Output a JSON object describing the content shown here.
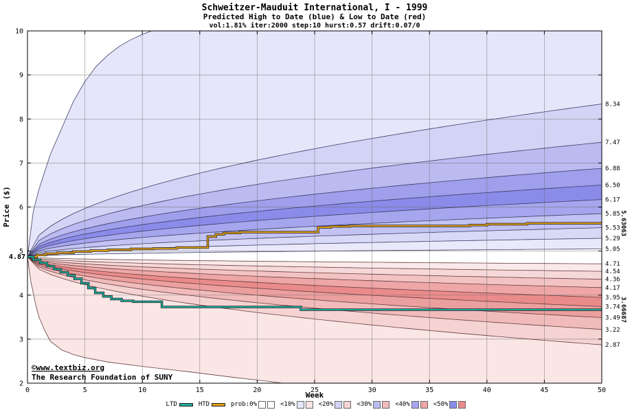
{
  "chart_data": {
    "type": "area",
    "title": "Schweitzer-Mauduit International, I - 1999",
    "subtitle": "Predicted High to Date (blue) &  Low to Date (red)",
    "params": "vol:1.81% iter:2000 step:10 hurst:0.57 drift:0.07/0",
    "xlabel": "Week",
    "ylabel": "Price ($)",
    "xlim": [
      0,
      50
    ],
    "ylim": [
      2,
      10
    ],
    "xticks": [
      0,
      5,
      10,
      15,
      20,
      25,
      30,
      35,
      40,
      45,
      50
    ],
    "yticks": [
      2,
      3,
      4,
      5,
      6,
      7,
      8,
      9,
      10
    ],
    "grid": true,
    "legend_position": "bottom",
    "start_price": 4.87,
    "start_label": "4.87",
    "fan": {
      "model": "sqrt-spread probability cone from start price",
      "upper": {
        "boundary_ends": [
          5.05,
          5.29,
          5.53,
          5.85,
          6.17,
          6.5,
          6.88,
          7.47,
          8.34
        ],
        "labels": [
          "5.05",
          "5.29",
          "5.53",
          "5.85",
          "6.17",
          "6.50",
          "6.88",
          "7.47",
          "8.34"
        ],
        "extreme_points": [
          [
            0,
            4.87
          ],
          [
            0.5,
            5.9
          ],
          [
            1,
            6.4
          ],
          [
            2,
            7.2
          ],
          [
            3,
            7.8
          ],
          [
            4,
            8.4
          ],
          [
            5,
            8.85
          ],
          [
            6,
            9.2
          ],
          [
            7,
            9.45
          ],
          [
            8,
            9.65
          ],
          [
            9,
            9.8
          ],
          [
            10,
            9.92
          ],
          [
            11,
            10.02
          ],
          [
            13,
            10.3
          ],
          [
            50,
            13.5
          ]
        ],
        "band_colors": [
          "#e9e9fb",
          "#d8d8f7",
          "#c2c2f3",
          "#a6a6ee",
          "#8b8bea",
          "#9f9fec",
          "#bbbbf1",
          "#d3d3f6",
          "#e6e6fb"
        ],
        "line_color": "#3c3c64"
      },
      "lower": {
        "boundary_ends": [
          4.71,
          4.54,
          4.36,
          4.17,
          3.95,
          3.74,
          3.49,
          3.22,
          2.87
        ],
        "labels": [
          "4.71",
          "4.54",
          "4.36",
          "4.17",
          "3.95",
          "3.74",
          "3.49",
          "3.22",
          "2.87"
        ],
        "extreme_points": [
          [
            0,
            4.87
          ],
          [
            0.3,
            4.3
          ],
          [
            0.7,
            3.8
          ],
          [
            1,
            3.5
          ],
          [
            1.5,
            3.2
          ],
          [
            2,
            2.95
          ],
          [
            3,
            2.75
          ],
          [
            4,
            2.65
          ],
          [
            5,
            2.58
          ],
          [
            7,
            2.48
          ],
          [
            10,
            2.38
          ],
          [
            14,
            2.26
          ],
          [
            18,
            2.13
          ],
          [
            21,
            2.04
          ],
          [
            23,
            1.97
          ],
          [
            30,
            1.78
          ],
          [
            50,
            1.45
          ]
        ],
        "band_colors": [
          "#fbe9e9",
          "#f7d8d8",
          "#f3c2c2",
          "#eea6a6",
          "#ea8b8b",
          "#ec9f9f",
          "#f1bbbb",
          "#f6d3d3",
          "#fbe6e6"
        ],
        "line_color": "#643c3c"
      }
    },
    "series": [
      {
        "name": "HTD",
        "kind": "step",
        "color": "#e2a018",
        "label_color": "#b8860b",
        "final_label": "5.63063",
        "points": [
          [
            0,
            4.87
          ],
          [
            0.8,
            4.91
          ],
          [
            1.6,
            4.94
          ],
          [
            2.6,
            4.96
          ],
          [
            4,
            4.99
          ],
          [
            5.5,
            5.01
          ],
          [
            7,
            5.03
          ],
          [
            9,
            5.05
          ],
          [
            11,
            5.06
          ],
          [
            13,
            5.08
          ],
          [
            15.7,
            5.33
          ],
          [
            16.4,
            5.38
          ],
          [
            17.1,
            5.41
          ],
          [
            18.5,
            5.43
          ],
          [
            25.3,
            5.54
          ],
          [
            26.4,
            5.56
          ],
          [
            28,
            5.57
          ],
          [
            38.5,
            5.59
          ],
          [
            40,
            5.61
          ],
          [
            43.5,
            5.6306
          ],
          [
            50,
            5.6306
          ]
        ]
      },
      {
        "name": "LTD",
        "kind": "step",
        "color": "#1fae9e",
        "label_color": "#0f9a8a",
        "final_label": "3.66687",
        "points": [
          [
            0,
            4.87
          ],
          [
            0.5,
            4.8
          ],
          [
            1.1,
            4.73
          ],
          [
            1.7,
            4.66
          ],
          [
            2.3,
            4.59
          ],
          [
            2.9,
            4.52
          ],
          [
            3.5,
            4.45
          ],
          [
            4.1,
            4.37
          ],
          [
            4.7,
            4.27
          ],
          [
            5.3,
            4.16
          ],
          [
            5.9,
            4.05
          ],
          [
            6.6,
            3.97
          ],
          [
            7.3,
            3.91
          ],
          [
            8.2,
            3.87
          ],
          [
            9.2,
            3.85
          ],
          [
            11.7,
            3.73
          ],
          [
            23.8,
            3.6669
          ],
          [
            50,
            3.6669
          ]
        ]
      }
    ],
    "colors": {
      "start_label": "#7a0c0c",
      "watermark": "#000099",
      "axis": "#000000",
      "grid": "#6a6a6a"
    }
  },
  "watermark": {
    "line1": "©www.textbiz.org",
    "line2": "The Research Foundation of SUNY"
  },
  "legend": {
    "items": [
      {
        "label": "LTD",
        "type": "line",
        "color": "#1fae9e"
      },
      {
        "label": "HTD",
        "type": "line",
        "color": "#e2a018"
      },
      {
        "label": "prob:0%",
        "type": "pair",
        "colors": [
          "#ffffff",
          "#ffffff"
        ]
      },
      {
        "label": "<10%",
        "type": "pair",
        "colors": [
          "#e6e6fb",
          "#fbe6e6"
        ]
      },
      {
        "label": "<20%",
        "type": "pair",
        "colors": [
          "#d3d3f6",
          "#f6d3d3"
        ]
      },
      {
        "label": "<30%",
        "type": "pair",
        "colors": [
          "#bbbbf1",
          "#f1bbbb"
        ]
      },
      {
        "label": "<40%",
        "type": "pair",
        "colors": [
          "#a6a6ee",
          "#eea6a6"
        ]
      },
      {
        "label": "<50%",
        "type": "pair",
        "colors": [
          "#8b8bea",
          "#ea8b8b"
        ]
      }
    ]
  }
}
